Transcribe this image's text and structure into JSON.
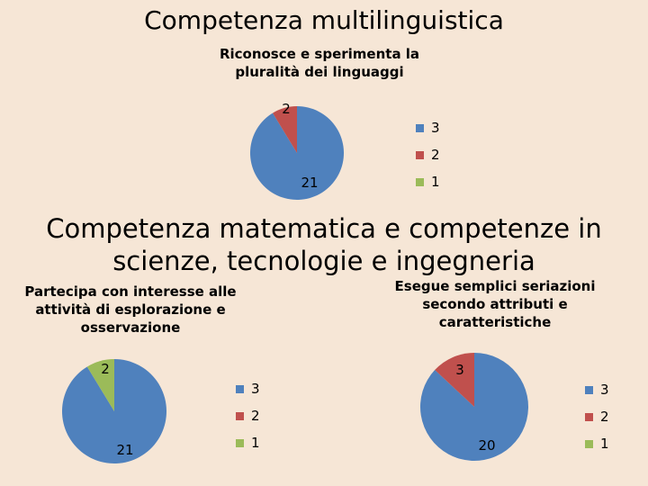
{
  "title": "Competenza multilinguistica",
  "section_title": "Competenza matematica e competenze in scienze, tecnologie e ingegneria",
  "colors": {
    "3": "#4f81bd",
    "2": "#c0504d",
    "1": "#9bbb59"
  },
  "chart_data": [
    {
      "type": "pie",
      "title": "Riconosce e sperimenta la pluralità dei linguaggi",
      "categories": [
        "3",
        "2",
        "1"
      ],
      "values": [
        21,
        2,
        0
      ],
      "data_labels": [
        "21",
        "2",
        ""
      ],
      "legend_position": "right"
    },
    {
      "type": "pie",
      "title": "Partecipa con interesse alle attività di esplorazione e osservazione",
      "categories": [
        "3",
        "2",
        "1"
      ],
      "values": [
        21,
        0,
        2
      ],
      "data_labels": [
        "21",
        "",
        "2"
      ],
      "legend_position": "right"
    },
    {
      "type": "pie",
      "title": "Esegue semplici seriazioni secondo attributi e caratteristiche",
      "categories": [
        "3",
        "2",
        "1"
      ],
      "values": [
        20,
        3,
        0
      ],
      "data_labels": [
        "20",
        "3",
        ""
      ],
      "legend_position": "right"
    }
  ]
}
